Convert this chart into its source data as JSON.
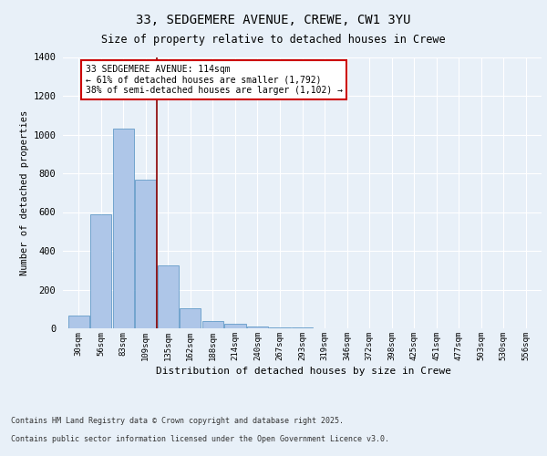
{
  "title1": "33, SEDGEMERE AVENUE, CREWE, CW1 3YU",
  "title2": "Size of property relative to detached houses in Crewe",
  "xlabel": "Distribution of detached houses by size in Crewe",
  "ylabel": "Number of detached properties",
  "categories": [
    "30sqm",
    "56sqm",
    "83sqm",
    "109sqm",
    "135sqm",
    "162sqm",
    "188sqm",
    "214sqm",
    "240sqm",
    "267sqm",
    "293sqm",
    "319sqm",
    "346sqm",
    "372sqm",
    "398sqm",
    "425sqm",
    "451sqm",
    "477sqm",
    "503sqm",
    "530sqm",
    "556sqm"
  ],
  "values": [
    65,
    590,
    1030,
    765,
    325,
    105,
    40,
    25,
    10,
    5,
    3,
    2,
    1,
    1,
    1,
    1,
    1,
    1,
    1,
    1,
    1
  ],
  "bar_color": "#aec6e8",
  "bar_edge_color": "#4f8fc0",
  "vline_x": 3.5,
  "vline_color": "#8b0000",
  "annotation_text": "33 SEDGEMERE AVENUE: 114sqm\n← 61% of detached houses are smaller (1,792)\n38% of semi-detached houses are larger (1,102) →",
  "annotation_box_color": "#ffffff",
  "annotation_box_edge_color": "#cc0000",
  "ylim": [
    0,
    1400
  ],
  "yticks": [
    0,
    200,
    400,
    600,
    800,
    1000,
    1200,
    1400
  ],
  "bg_color": "#e8f0f8",
  "plot_bg_color": "#e8f0f8",
  "grid_color": "#ffffff",
  "footer1": "Contains HM Land Registry data © Crown copyright and database right 2025.",
  "footer2": "Contains public sector information licensed under the Open Government Licence v3.0."
}
